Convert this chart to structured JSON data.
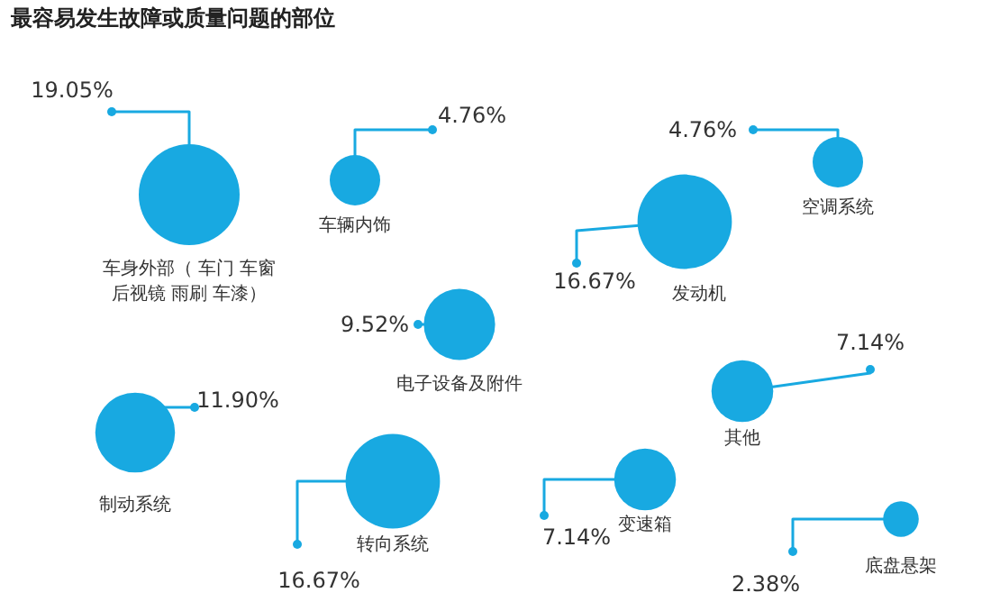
{
  "chart_data": {
    "type": "other",
    "title": "最容易发生故障或质量问题的部位",
    "categories": [
      "车身外部（ 车门 车窗后视镜 雨刷 车漆）",
      "车辆内饰",
      "空调系统",
      "发动机",
      "电子设备及附件",
      "其他",
      "制动系统",
      "转向系统",
      "变速箱",
      "底盘悬架"
    ],
    "values": [
      19.05,
      4.76,
      4.76,
      16.67,
      9.52,
      7.14,
      11.9,
      16.67,
      7.14,
      2.38
    ],
    "value_labels": [
      "19.05%",
      "4.76%",
      "4.76%",
      "16.67%",
      "9.52%",
      "7.14%",
      "11.90%",
      "16.67%",
      "7.14%",
      "2.38%"
    ],
    "color": "#18a9e1"
  }
}
